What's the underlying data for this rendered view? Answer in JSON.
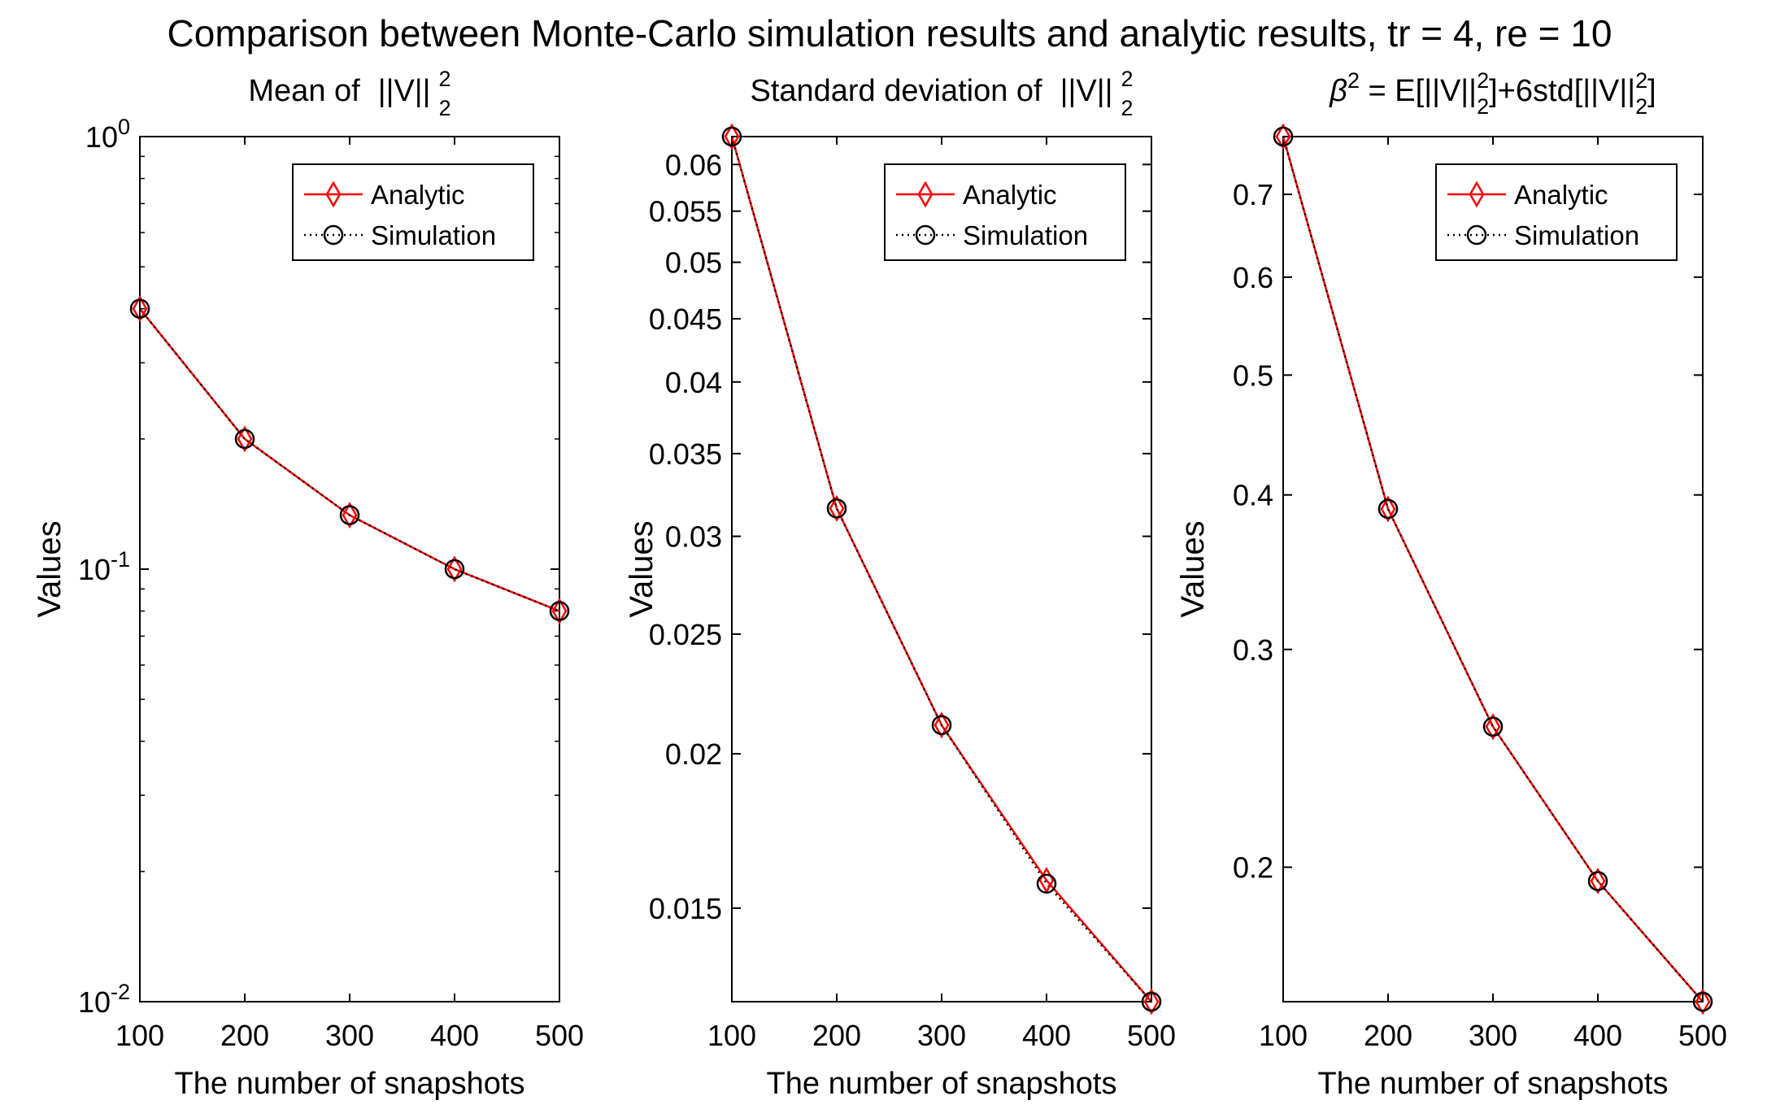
{
  "figure": {
    "title": "Comparison between Monte-Carlo simulation results and analytic results, tr = 4, re = 10"
  },
  "colors": {
    "analytic": "#ff0000",
    "simulation": "#000000",
    "axes": "#000000",
    "background": "#ffffff"
  },
  "chart_data": [
    {
      "type": "line",
      "yscale": "log",
      "title": "Mean of ||V||_2^2",
      "title_parts": {
        "prefix": "Mean of",
        "norm": "||V||",
        "sup": "2",
        "sub": "2"
      },
      "xlabel": "The number of snapshots",
      "ylabel": "Values",
      "xlim": [
        100,
        500
      ],
      "ylim": [
        0.01,
        1
      ],
      "x_ticks": [
        "100",
        "200",
        "300",
        "400",
        "500"
      ],
      "y_ticks": [
        {
          "value": 1,
          "base": "10",
          "exp": "0"
        },
        {
          "value": 0.1,
          "base": "10",
          "exp": "-1"
        },
        {
          "value": 0.01,
          "base": "10",
          "exp": "-2"
        }
      ],
      "legend": {
        "position": "top-right",
        "entries": [
          "Analytic",
          "Simulation"
        ]
      },
      "series": [
        {
          "name": "Analytic",
          "x": [
            100,
            200,
            300,
            400,
            500
          ],
          "values": [
            0.4,
            0.2,
            0.1333,
            0.1,
            0.08
          ]
        },
        {
          "name": "Simulation",
          "x": [
            100,
            200,
            300,
            400,
            500
          ],
          "values": [
            0.4,
            0.2,
            0.1333,
            0.1,
            0.08
          ]
        }
      ]
    },
    {
      "type": "line",
      "yscale": "log",
      "title": "Standard deviation of ||V||_2^2",
      "title_parts": {
        "prefix": "Standard deviation of",
        "norm": "||V||",
        "sup": "2",
        "sub": "2"
      },
      "xlabel": "The number of snapshots",
      "ylabel": "Values",
      "xlim": [
        100,
        500
      ],
      "ylim": [
        0.0126,
        0.0632
      ],
      "x_ticks": [
        "100",
        "200",
        "300",
        "400",
        "500"
      ],
      "y_ticks": [
        {
          "value": 0.06,
          "label": "0.06"
        },
        {
          "value": 0.055,
          "label": "0.055"
        },
        {
          "value": 0.05,
          "label": "0.05"
        },
        {
          "value": 0.045,
          "label": "0.045"
        },
        {
          "value": 0.04,
          "label": "0.04"
        },
        {
          "value": 0.035,
          "label": "0.035"
        },
        {
          "value": 0.03,
          "label": "0.03"
        },
        {
          "value": 0.025,
          "label": "0.025"
        },
        {
          "value": 0.02,
          "label": "0.02"
        },
        {
          "value": 0.015,
          "label": "0.015"
        }
      ],
      "legend": {
        "position": "top-right",
        "entries": [
          "Analytic",
          "Simulation"
        ]
      },
      "series": [
        {
          "name": "Analytic",
          "x": [
            100,
            200,
            300,
            400,
            500
          ],
          "values": [
            0.0632,
            0.0316,
            0.0211,
            0.0158,
            0.0126
          ]
        },
        {
          "name": "Simulation",
          "x": [
            100,
            200,
            300,
            400,
            500
          ],
          "values": [
            0.0632,
            0.0316,
            0.0211,
            0.0157,
            0.0126
          ]
        }
      ]
    },
    {
      "type": "line",
      "yscale": "log",
      "title": "β^2 = E[||V||_2^2]+6std[||V||_2^2]",
      "title_parts": {
        "beta": "β",
        "sup": "2",
        "sub": "2",
        "eq": " = E[",
        "norm": "||V||",
        "mid": "]+6std[",
        "end": "]"
      },
      "xlabel": "The number of snapshots",
      "ylabel": "Values",
      "xlim": [
        100,
        500
      ],
      "ylim": [
        0.1557,
        0.7795
      ],
      "x_ticks": [
        "100",
        "200",
        "300",
        "400",
        "500"
      ],
      "y_ticks": [
        {
          "value": 0.7,
          "label": "0.7"
        },
        {
          "value": 0.6,
          "label": "0.6"
        },
        {
          "value": 0.5,
          "label": "0.5"
        },
        {
          "value": 0.4,
          "label": "0.4"
        },
        {
          "value": 0.3,
          "label": "0.3"
        },
        {
          "value": 0.2,
          "label": "0.2"
        }
      ],
      "legend": {
        "position": "top-right",
        "entries": [
          "Analytic",
          "Simulation"
        ]
      },
      "series": [
        {
          "name": "Analytic",
          "x": [
            100,
            200,
            300,
            400,
            500
          ],
          "values": [
            0.7795,
            0.3897,
            0.2598,
            0.1949,
            0.1557
          ]
        },
        {
          "name": "Simulation",
          "x": [
            100,
            200,
            300,
            400,
            500
          ],
          "values": [
            0.7795,
            0.3897,
            0.2598,
            0.1949,
            0.1557
          ]
        }
      ]
    }
  ]
}
